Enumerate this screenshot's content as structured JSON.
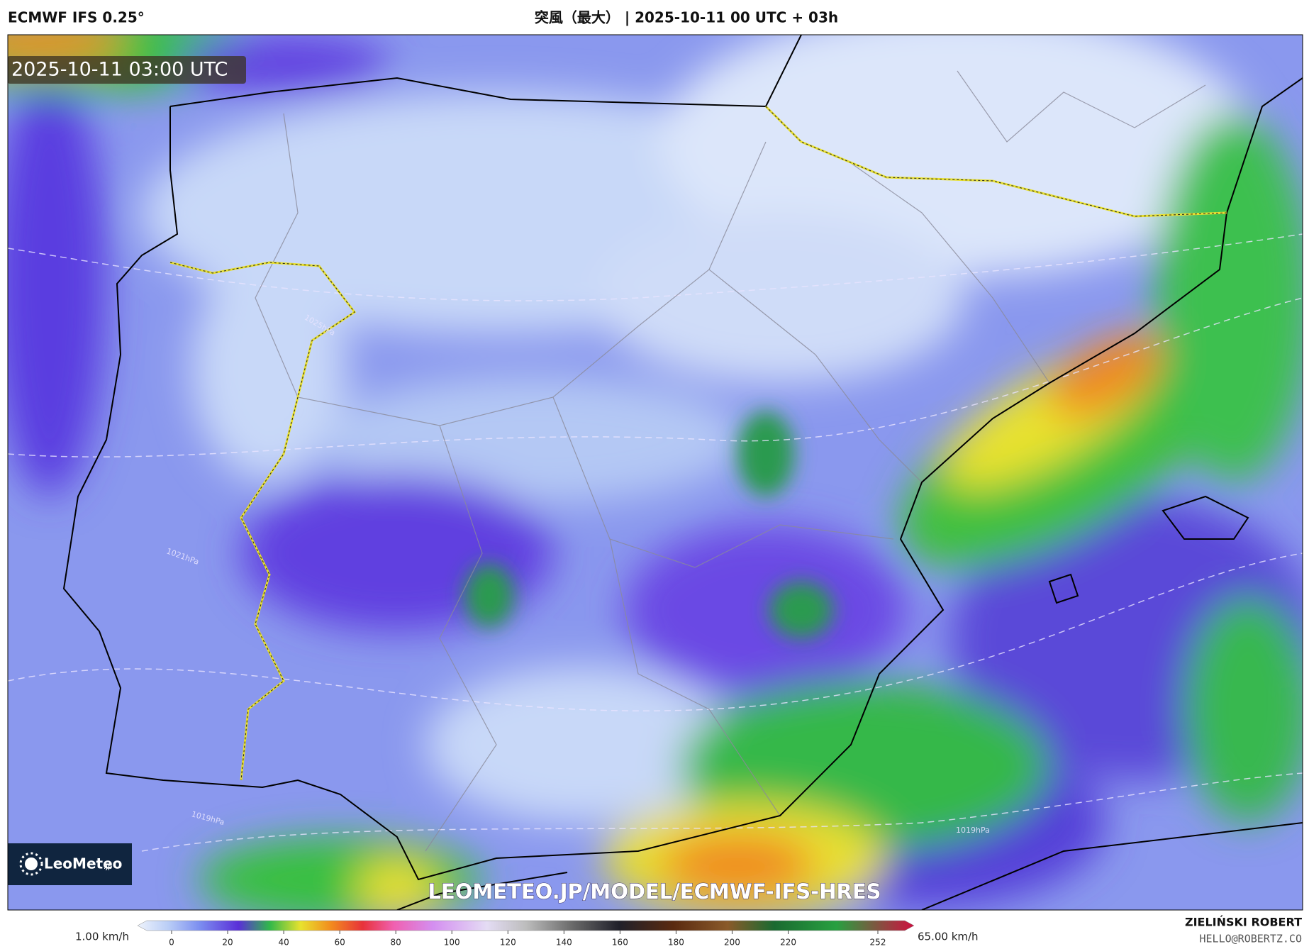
{
  "header": {
    "model": "ECMWF IFS 0.25°",
    "title": "突風（最大） | 2025-10-11 00 UTC + 03h"
  },
  "map": {
    "timestamp": "2025-10-11 03:00 UTC",
    "watermark": "LEOMETEO.JP/MODEL/ECMWF-IFS-HRES",
    "logo": {
      "name": "LeoMeteo",
      "suffix": ".jp"
    },
    "isobar_labels": [
      "1025hPa",
      "1021hPa",
      "1019hPa",
      "1019hPa"
    ]
  },
  "colorbar": {
    "min_label": "1.00 km/h",
    "max_label": "65.00 km/h",
    "ticks": [
      0,
      20,
      40,
      60,
      80,
      100,
      120,
      140,
      160,
      180,
      200,
      220,
      252
    ]
  },
  "credits": {
    "author": "ZIELIŃSKI ROBERT",
    "email": "HELLO@ROBERTZ.CO"
  }
}
